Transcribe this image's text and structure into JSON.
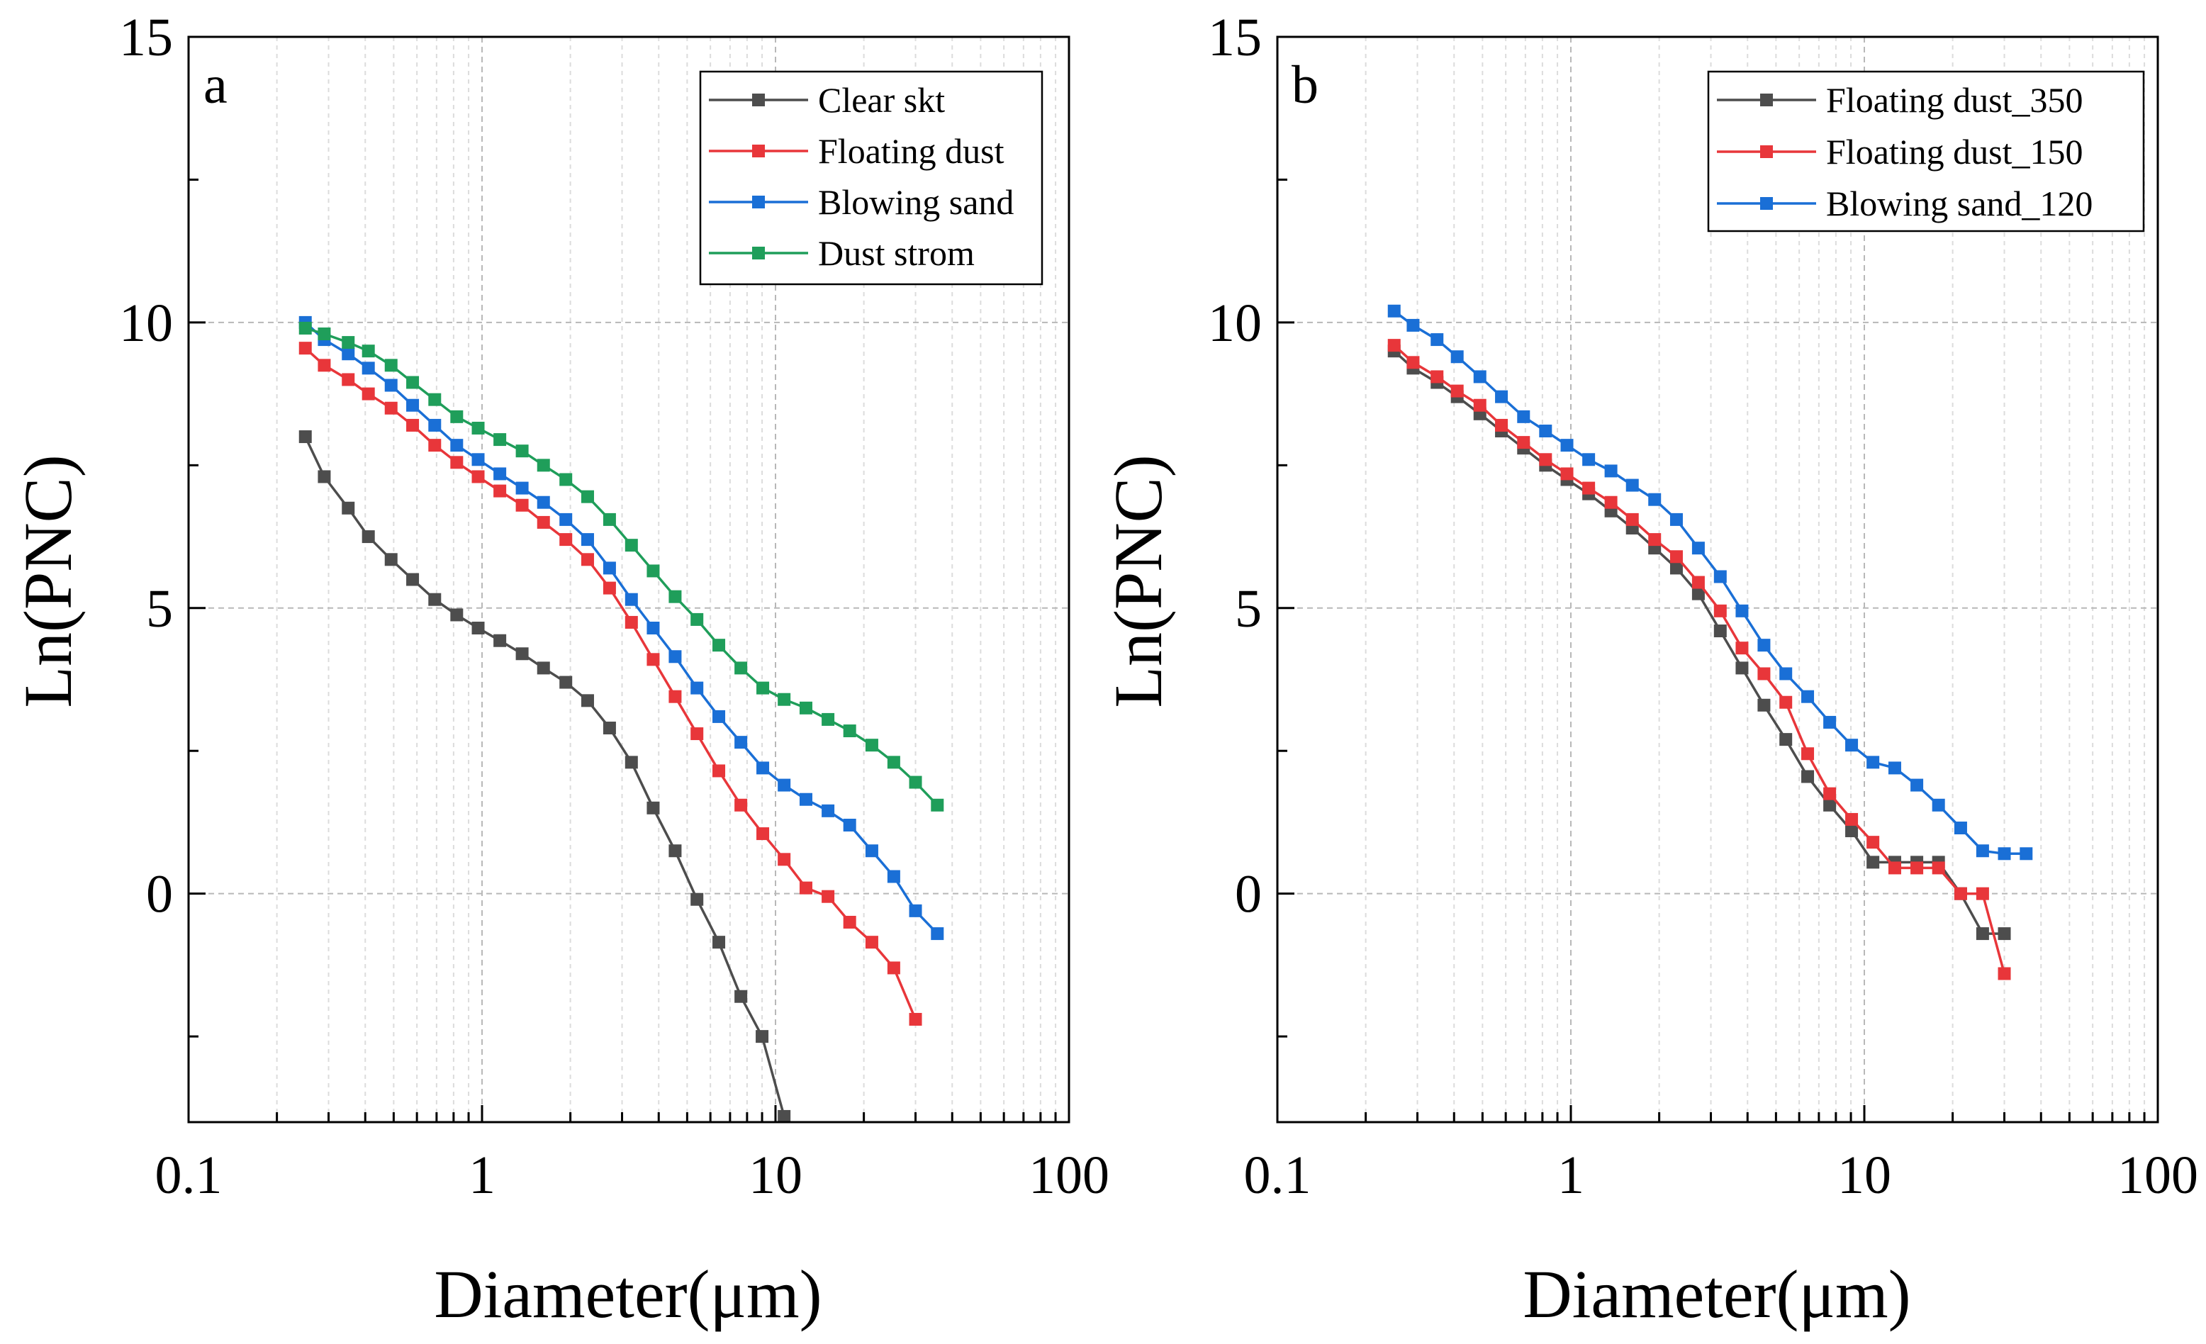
{
  "chart_data": [
    {
      "type": "line",
      "panel_label": "a",
      "xlabel": "Diameter(μm)",
      "ylabel": "Ln(PNC)",
      "xscale": "log",
      "xlim": [
        0.1,
        100
      ],
      "ylim": [
        -4,
        15
      ],
      "xticks": [
        0.1,
        1,
        10,
        100
      ],
      "xtick_labels": [
        "0.1",
        "1",
        "10",
        "100"
      ],
      "yticks": [
        0,
        5,
        10,
        15
      ],
      "ytick_labels": [
        "0",
        "5",
        "10",
        "15"
      ],
      "grid": true,
      "legend_position": "top-right",
      "series": [
        {
          "name": "Clear skt",
          "color": "#4d4d4d",
          "x": [
            0.25,
            0.29,
            0.35,
            0.41,
            0.49,
            0.58,
            0.69,
            0.82,
            0.97,
            1.15,
            1.37,
            1.62,
            1.93,
            2.29,
            2.72,
            3.23,
            3.83,
            4.55,
            5.4,
            6.41,
            7.62,
            9.0,
            10.7
          ],
          "y": [
            8.0,
            7.3,
            6.75,
            6.25,
            5.85,
            5.5,
            5.15,
            4.88,
            4.65,
            4.43,
            4.2,
            3.95,
            3.7,
            3.38,
            2.9,
            2.3,
            1.5,
            0.75,
            -0.1,
            -0.85,
            -1.8,
            -2.5,
            -3.9
          ]
        },
        {
          "name": "Floating dust",
          "color": "#e8363a",
          "x": [
            0.25,
            0.29,
            0.35,
            0.41,
            0.49,
            0.58,
            0.69,
            0.82,
            0.97,
            1.15,
            1.37,
            1.62,
            1.93,
            2.29,
            2.72,
            3.23,
            3.83,
            4.55,
            5.4,
            6.41,
            7.62,
            9.05,
            10.7,
            12.7,
            15.1,
            17.9,
            21.3,
            25.3,
            30.0
          ],
          "y": [
            9.55,
            9.25,
            9.0,
            8.75,
            8.5,
            8.2,
            7.85,
            7.55,
            7.3,
            7.05,
            6.8,
            6.5,
            6.2,
            5.85,
            5.35,
            4.75,
            4.1,
            3.45,
            2.8,
            2.15,
            1.55,
            1.05,
            0.6,
            0.1,
            -0.05,
            -0.5,
            -0.85,
            -1.3,
            -2.2
          ]
        },
        {
          "name": "Blowing sand",
          "color": "#1a6fd6",
          "x": [
            0.25,
            0.29,
            0.35,
            0.41,
            0.49,
            0.58,
            0.69,
            0.82,
            0.97,
            1.15,
            1.37,
            1.62,
            1.93,
            2.29,
            2.72,
            3.23,
            3.83,
            4.55,
            5.4,
            6.41,
            7.62,
            9.05,
            10.7,
            12.7,
            15.1,
            17.9,
            21.3,
            25.3,
            30.0,
            35.6
          ],
          "y": [
            10.0,
            9.7,
            9.45,
            9.2,
            8.9,
            8.55,
            8.2,
            7.85,
            7.6,
            7.35,
            7.1,
            6.85,
            6.55,
            6.2,
            5.7,
            5.15,
            4.65,
            4.15,
            3.6,
            3.1,
            2.65,
            2.2,
            1.9,
            1.65,
            1.45,
            1.2,
            0.75,
            0.3,
            -0.3,
            -0.7
          ]
        },
        {
          "name": "Dust strom",
          "color": "#1f9e5a",
          "x": [
            0.25,
            0.29,
            0.35,
            0.41,
            0.49,
            0.58,
            0.69,
            0.82,
            0.97,
            1.15,
            1.37,
            1.62,
            1.93,
            2.29,
            2.72,
            3.23,
            3.83,
            4.55,
            5.4,
            6.41,
            7.62,
            9.05,
            10.7,
            12.7,
            15.1,
            17.9,
            21.3,
            25.3,
            30.0,
            35.6
          ],
          "y": [
            9.9,
            9.8,
            9.65,
            9.5,
            9.25,
            8.95,
            8.65,
            8.35,
            8.15,
            7.95,
            7.75,
            7.5,
            7.25,
            6.95,
            6.55,
            6.1,
            5.65,
            5.2,
            4.8,
            4.35,
            3.95,
            3.6,
            3.4,
            3.25,
            3.05,
            2.85,
            2.6,
            2.3,
            1.95,
            1.55
          ]
        }
      ]
    },
    {
      "type": "line",
      "panel_label": "b",
      "xlabel": "Diameter(μm)",
      "ylabel": "Ln(PNC)",
      "xscale": "log",
      "xlim": [
        0.1,
        100
      ],
      "ylim": [
        -4,
        15
      ],
      "xticks": [
        0.1,
        1,
        10,
        100
      ],
      "xtick_labels": [
        "0.1",
        "1",
        "10",
        "100"
      ],
      "yticks": [
        0,
        5,
        10,
        15
      ],
      "ytick_labels": [
        "0",
        "5",
        "10",
        "15"
      ],
      "grid": true,
      "legend_position": "top-right",
      "series": [
        {
          "name": "Floating dust_350",
          "color": "#4d4d4d",
          "x": [
            0.25,
            0.29,
            0.35,
            0.41,
            0.49,
            0.58,
            0.69,
            0.82,
            0.97,
            1.15,
            1.37,
            1.62,
            1.93,
            2.29,
            2.72,
            3.23,
            3.83,
            4.55,
            5.4,
            6.41,
            7.62,
            9.05,
            10.7,
            12.7,
            15.1,
            17.9,
            21.3,
            25.3,
            30.0
          ],
          "y": [
            9.5,
            9.2,
            8.95,
            8.7,
            8.4,
            8.1,
            7.8,
            7.5,
            7.25,
            7.0,
            6.7,
            6.4,
            6.05,
            5.7,
            5.25,
            4.6,
            3.95,
            3.3,
            2.7,
            2.05,
            1.55,
            1.1,
            0.55,
            0.55,
            0.55,
            0.55,
            0.0,
            -0.7,
            -0.7
          ]
        },
        {
          "name": "Floating dust_150",
          "color": "#e8363a",
          "x": [
            0.25,
            0.29,
            0.35,
            0.41,
            0.49,
            0.58,
            0.69,
            0.82,
            0.97,
            1.15,
            1.37,
            1.62,
            1.93,
            2.29,
            2.72,
            3.23,
            3.83,
            4.55,
            5.4,
            6.41,
            7.62,
            9.05,
            10.7,
            12.7,
            15.1,
            17.9,
            21.3,
            25.3,
            30.0
          ],
          "y": [
            9.6,
            9.3,
            9.05,
            8.8,
            8.55,
            8.2,
            7.9,
            7.6,
            7.35,
            7.1,
            6.85,
            6.55,
            6.2,
            5.9,
            5.45,
            4.95,
            4.3,
            3.85,
            3.35,
            2.45,
            1.75,
            1.3,
            0.9,
            0.45,
            0.45,
            0.45,
            0.0,
            0.0,
            -1.4
          ]
        },
        {
          "name": "Blowing  sand_120",
          "color": "#1a6fd6",
          "x": [
            0.25,
            0.29,
            0.35,
            0.41,
            0.49,
            0.58,
            0.69,
            0.82,
            0.97,
            1.15,
            1.37,
            1.62,
            1.93,
            2.29,
            2.72,
            3.23,
            3.83,
            4.55,
            5.4,
            6.41,
            7.62,
            9.05,
            10.7,
            12.7,
            15.1,
            17.9,
            21.3,
            25.3,
            30.0,
            35.6
          ],
          "y": [
            10.2,
            9.95,
            9.7,
            9.4,
            9.05,
            8.7,
            8.35,
            8.1,
            7.85,
            7.6,
            7.4,
            7.15,
            6.9,
            6.55,
            6.05,
            5.55,
            4.95,
            4.35,
            3.85,
            3.45,
            3.0,
            2.6,
            2.3,
            2.2,
            1.9,
            1.55,
            1.15,
            0.75,
            0.7,
            0.7
          ]
        }
      ]
    }
  ]
}
